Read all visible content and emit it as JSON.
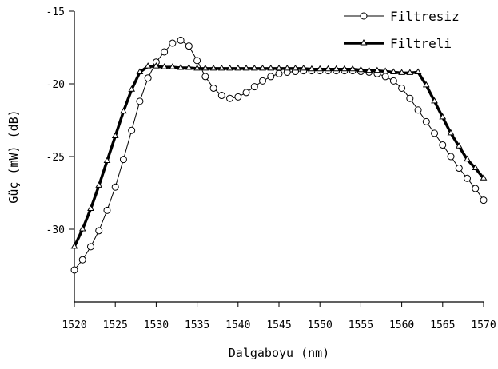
{
  "chart_data": {
    "type": "line",
    "title": "",
    "xlabel": "Dalgaboyu (nm)",
    "ylabel": "Güç (mW) (dB)",
    "xlim": [
      1520,
      1570
    ],
    "ylim": [
      -35,
      -15
    ],
    "xticks": [
      1520,
      1525,
      1530,
      1535,
      1540,
      1545,
      1550,
      1555,
      1560,
      1565,
      1570
    ],
    "yticks": [
      -15,
      -20,
      -25,
      -30
    ],
    "grid": false,
    "legend_position": "top-right",
    "series": [
      {
        "name": "Filtresiz",
        "marker": "open-circle",
        "line_style": "thin",
        "points": [
          [
            1520,
            -32.8
          ],
          [
            1521,
            -32.1
          ],
          [
            1522,
            -31.2
          ],
          [
            1523,
            -30.1
          ],
          [
            1524,
            -28.7
          ],
          [
            1525,
            -27.1
          ],
          [
            1526,
            -25.2
          ],
          [
            1527,
            -23.2
          ],
          [
            1528,
            -21.2
          ],
          [
            1529,
            -19.6
          ],
          [
            1530,
            -18.5
          ],
          [
            1531,
            -17.8
          ],
          [
            1532,
            -17.2
          ],
          [
            1533,
            -17.0
          ],
          [
            1534,
            -17.4
          ],
          [
            1535,
            -18.4
          ],
          [
            1536,
            -19.5
          ],
          [
            1537,
            -20.3
          ],
          [
            1538,
            -20.8
          ],
          [
            1539,
            -21.0
          ],
          [
            1540,
            -20.9
          ],
          [
            1541,
            -20.6
          ],
          [
            1542,
            -20.2
          ],
          [
            1543,
            -19.8
          ],
          [
            1544,
            -19.5
          ],
          [
            1545,
            -19.3
          ],
          [
            1546,
            -19.2
          ],
          [
            1547,
            -19.15
          ],
          [
            1548,
            -19.1
          ],
          [
            1549,
            -19.1
          ],
          [
            1550,
            -19.1
          ],
          [
            1551,
            -19.1
          ],
          [
            1552,
            -19.1
          ],
          [
            1553,
            -19.1
          ],
          [
            1554,
            -19.1
          ],
          [
            1555,
            -19.15
          ],
          [
            1556,
            -19.2
          ],
          [
            1557,
            -19.3
          ],
          [
            1558,
            -19.5
          ],
          [
            1559,
            -19.8
          ],
          [
            1560,
            -20.3
          ],
          [
            1561,
            -21.0
          ],
          [
            1562,
            -21.8
          ],
          [
            1563,
            -22.6
          ],
          [
            1564,
            -23.4
          ],
          [
            1565,
            -24.2
          ],
          [
            1566,
            -25.0
          ],
          [
            1567,
            -25.8
          ],
          [
            1568,
            -26.5
          ],
          [
            1569,
            -27.2
          ],
          [
            1570,
            -28.0
          ]
        ]
      },
      {
        "name": "Filtreli",
        "marker": "open-triangle",
        "line_style": "thick",
        "points": [
          [
            1520,
            -31.2
          ],
          [
            1521,
            -30.0
          ],
          [
            1522,
            -28.6
          ],
          [
            1523,
            -27.0
          ],
          [
            1524,
            -25.3
          ],
          [
            1525,
            -23.6
          ],
          [
            1526,
            -21.9
          ],
          [
            1527,
            -20.4
          ],
          [
            1528,
            -19.2
          ],
          [
            1529,
            -18.8
          ],
          [
            1530,
            -18.8
          ],
          [
            1531,
            -18.85
          ],
          [
            1532,
            -18.85
          ],
          [
            1533,
            -18.9
          ],
          [
            1534,
            -18.9
          ],
          [
            1535,
            -18.95
          ],
          [
            1536,
            -18.95
          ],
          [
            1537,
            -18.95
          ],
          [
            1538,
            -18.95
          ],
          [
            1539,
            -18.95
          ],
          [
            1540,
            -18.95
          ],
          [
            1541,
            -18.95
          ],
          [
            1542,
            -18.95
          ],
          [
            1543,
            -18.95
          ],
          [
            1544,
            -18.95
          ],
          [
            1545,
            -18.95
          ],
          [
            1546,
            -18.95
          ],
          [
            1547,
            -18.95
          ],
          [
            1548,
            -18.95
          ],
          [
            1549,
            -19.0
          ],
          [
            1550,
            -19.0
          ],
          [
            1551,
            -19.0
          ],
          [
            1552,
            -19.0
          ],
          [
            1553,
            -19.0
          ],
          [
            1554,
            -19.0
          ],
          [
            1555,
            -19.05
          ],
          [
            1556,
            -19.1
          ],
          [
            1557,
            -19.1
          ],
          [
            1558,
            -19.15
          ],
          [
            1559,
            -19.2
          ],
          [
            1560,
            -19.25
          ],
          [
            1561,
            -19.25
          ],
          [
            1562,
            -19.2
          ],
          [
            1563,
            -20.1
          ],
          [
            1564,
            -21.2
          ],
          [
            1565,
            -22.3
          ],
          [
            1566,
            -23.4
          ],
          [
            1567,
            -24.3
          ],
          [
            1568,
            -25.2
          ],
          [
            1569,
            -25.8
          ],
          [
            1570,
            -26.5
          ]
        ]
      }
    ]
  }
}
